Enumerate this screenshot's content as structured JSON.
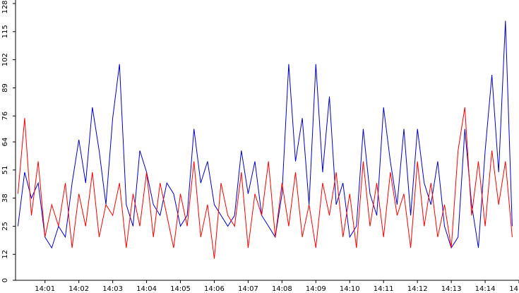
{
  "chart_data": {
    "type": "line",
    "x": [
      0.2,
      0.4,
      0.6,
      0.8,
      1.0,
      1.2,
      1.4,
      1.6,
      1.8,
      2.0,
      2.2,
      2.4,
      2.6,
      2.8,
      3.0,
      3.2,
      3.4,
      3.6,
      3.8,
      4.0,
      4.2,
      4.4,
      4.6,
      4.8,
      5.0,
      5.2,
      5.4,
      5.6,
      5.8,
      6.0,
      6.2,
      6.4,
      6.6,
      6.8,
      7.0,
      7.2,
      7.4,
      7.6,
      7.8,
      8.0,
      8.2,
      8.4,
      8.6,
      8.8,
      9.0,
      9.2,
      9.4,
      9.6,
      9.8,
      10.0,
      10.2,
      10.4,
      10.6,
      10.8,
      11.0,
      11.2,
      11.4,
      11.6,
      11.8,
      12.0,
      12.2,
      12.4,
      12.6,
      12.8,
      13.0,
      13.2,
      13.4,
      13.6,
      13.8,
      14.0,
      14.2,
      14.4,
      14.6,
      14.8
    ],
    "series": [
      {
        "color": "#0000cc",
        "values": [
          25,
          50,
          38,
          45,
          20,
          15,
          25,
          20,
          45,
          65,
          45,
          80,
          60,
          35,
          75,
          100,
          35,
          25,
          60,
          50,
          35,
          30,
          45,
          40,
          25,
          30,
          70,
          45,
          55,
          35,
          30,
          25,
          30,
          60,
          40,
          55,
          30,
          25,
          20,
          40,
          100,
          55,
          75,
          35,
          100,
          50,
          85,
          35,
          45,
          20,
          25,
          70,
          40,
          30,
          80,
          55,
          35,
          70,
          30,
          70,
          45,
          35,
          55,
          25,
          15,
          20,
          70,
          35,
          15,
          60,
          95,
          50,
          120,
          25
        ]
      },
      {
        "color": "#ff0000",
        "values": [
          40,
          75,
          30,
          55,
          20,
          35,
          25,
          45,
          15,
          40,
          25,
          50,
          20,
          35,
          30,
          45,
          15,
          40,
          25,
          50,
          20,
          45,
          30,
          15,
          40,
          25,
          55,
          20,
          35,
          10,
          45,
          30,
          25,
          50,
          15,
          40,
          30,
          55,
          20,
          45,
          25,
          50,
          20,
          35,
          15,
          45,
          30,
          50,
          20,
          40,
          15,
          55,
          25,
          45,
          20,
          50,
          30,
          40,
          15,
          55,
          25,
          45,
          20,
          35,
          15,
          60,
          80,
          30,
          55,
          25,
          60,
          35,
          55,
          20
        ]
      }
    ],
    "xlim": [
      0.13,
      15.0
    ],
    "xticks": [
      {
        "value": 1,
        "label": "14:01"
      },
      {
        "value": 2,
        "label": "14:02"
      },
      {
        "value": 3,
        "label": "14:03"
      },
      {
        "value": 4,
        "label": "14:04"
      },
      {
        "value": 5,
        "label": "14:05"
      },
      {
        "value": 6,
        "label": "14:06"
      },
      {
        "value": 7,
        "label": "14:07"
      },
      {
        "value": 8,
        "label": "14:08"
      },
      {
        "value": 9,
        "label": "14:09"
      },
      {
        "value": 10,
        "label": "14:10"
      },
      {
        "value": 11,
        "label": "14:11"
      },
      {
        "value": 12,
        "label": "14:12"
      },
      {
        "value": 13,
        "label": "14:13"
      },
      {
        "value": 14,
        "label": "14:14"
      },
      {
        "value": 15,
        "label": "14"
      }
    ],
    "ylim": [
      0,
      128
    ],
    "yticks": [
      0,
      12,
      25,
      38,
      51,
      64,
      76,
      89,
      102,
      115,
      128
    ]
  }
}
